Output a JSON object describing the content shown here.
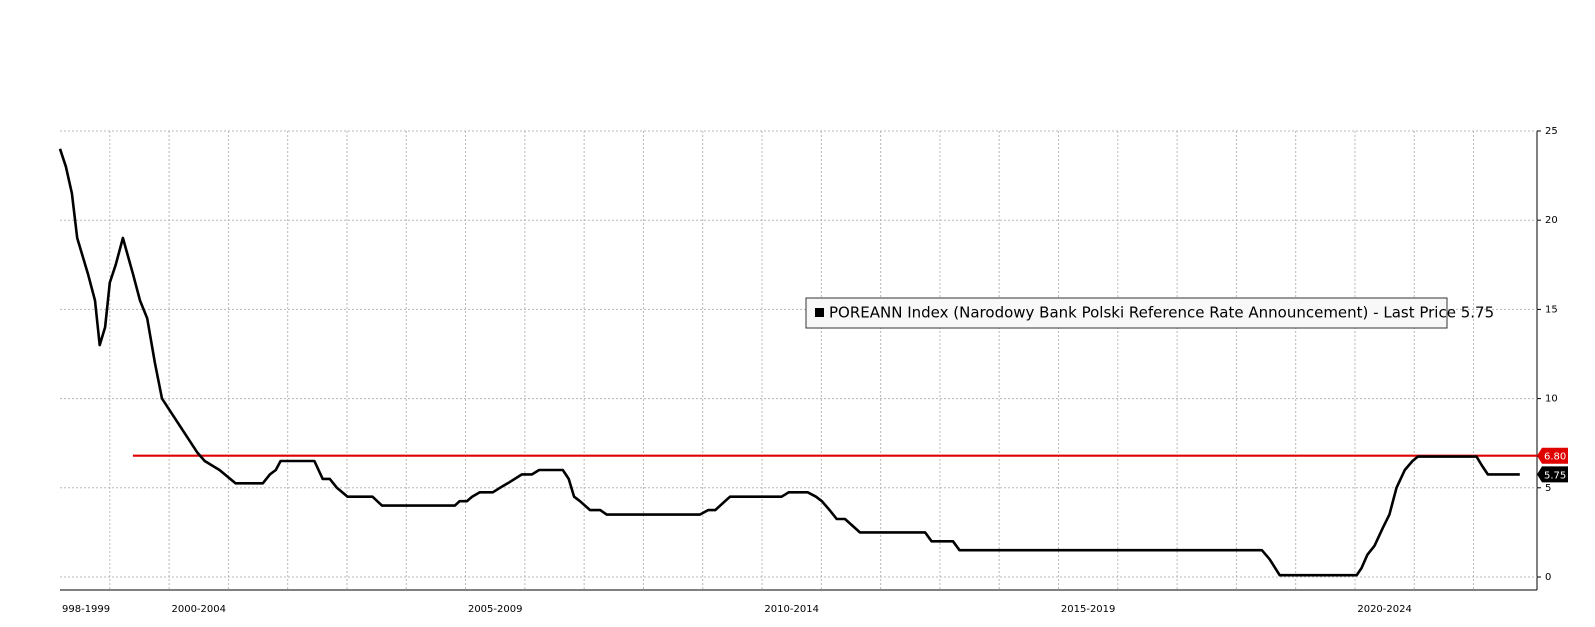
{
  "chart_data": {
    "type": "line",
    "x": [
      2000.16,
      2000.26,
      2000.36,
      2000.45,
      2000.63,
      2000.75,
      2000.83,
      2000.92,
      2001.0,
      2001.1,
      2001.22,
      2001.39,
      2001.51,
      2001.63,
      2001.76,
      2001.88,
      2002.47,
      2002.6,
      2002.85,
      2003.12,
      2003.58,
      2003.7,
      2003.8,
      2003.88,
      2004.45,
      2004.59,
      2004.71,
      2004.83,
      2005.01,
      2005.43,
      2005.59,
      2006.82,
      2006.9,
      2007.02,
      2007.11,
      2007.24,
      2007.46,
      2007.58,
      2007.71,
      2007.95,
      2008.12,
      2008.24,
      2008.64,
      2008.74,
      2008.83,
      2008.93,
      2009.1,
      2009.27,
      2009.38,
      2010.95,
      2011.09,
      2011.21,
      2011.46,
      2012.33,
      2012.45,
      2012.77,
      2012.91,
      2013.01,
      2013.14,
      2013.26,
      2013.4,
      2013.65,
      2014.75,
      2014.86,
      2015.22,
      2015.33,
      2020.43,
      2020.56,
      2020.73,
      2022.03,
      2022.11,
      2022.21,
      2022.33,
      2022.47,
      2022.58,
      2022.7,
      2022.84,
      2022.97,
      2023.06,
      2024.05,
      2024.14,
      2024.24,
      2024.78
    ],
    "series": [
      {
        "name": "POREANN Index (Narodowy Bank Polski Reference Rate Announcement) - Last Price 5.75",
        "color": "#000000",
        "values": [
          24,
          23,
          21.5,
          19,
          17,
          15.5,
          13,
          14,
          16.5,
          17.5,
          19,
          17,
          15.5,
          14.5,
          12,
          10,
          7,
          6.5,
          6,
          5.25,
          5.25,
          5.75,
          6,
          6.5,
          6.5,
          5.5,
          5.5,
          5,
          4.5,
          4.5,
          4,
          4,
          4.25,
          4.25,
          4.5,
          4.75,
          4.75,
          5,
          5.25,
          5.75,
          5.75,
          6,
          6,
          5.5,
          4.5,
          4.25,
          3.75,
          3.75,
          3.5,
          3.5,
          3.75,
          3.75,
          4.5,
          4.5,
          4.75,
          4.75,
          4.5,
          4.25,
          3.75,
          3.25,
          3.25,
          2.5,
          2.5,
          2,
          2,
          1.5,
          1.5,
          1,
          0.1,
          0.1,
          0.5,
          1.25,
          1.75,
          2.75,
          3.5,
          5,
          6,
          6.5,
          6.75,
          6.75,
          6.25,
          5.75,
          5.75
        ]
      }
    ],
    "reference_line": {
      "value": 6.8,
      "label": "6.80",
      "start": 2001.39,
      "color": "#e00000"
    },
    "xlim": [
      2000.16,
      2025.07
    ],
    "xticks": [
      {
        "value": 2000.6,
        "label": "998-1999"
      },
      {
        "value": 2002.5,
        "label": "2000-2004"
      },
      {
        "value": 2007.5,
        "label": "2005-2009"
      },
      {
        "value": 2012.5,
        "label": "2010-2014"
      },
      {
        "value": 2017.5,
        "label": "2015-2019"
      },
      {
        "value": 2022.5,
        "label": "2020-2024"
      }
    ],
    "xgrid_lines": [
      2001,
      2002,
      2003,
      2004,
      2005,
      2006,
      2007,
      2008,
      2009,
      2010,
      2011,
      2012,
      2013,
      2014,
      2015,
      2016,
      2017,
      2018,
      2019,
      2020,
      2021,
      2022,
      2023,
      2024
    ],
    "ylim": [
      0,
      25
    ],
    "yticks": [
      0,
      5,
      10,
      15,
      20,
      25
    ],
    "grid": true
  }
}
